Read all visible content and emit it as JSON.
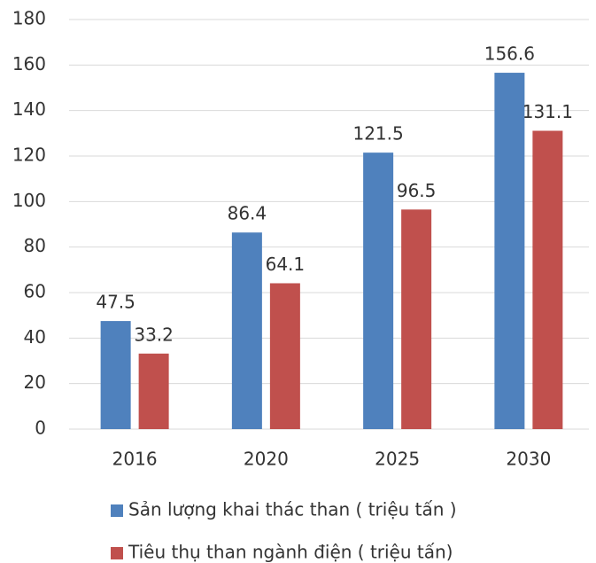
{
  "chart_data": {
    "type": "bar",
    "categories": [
      "2016",
      "2020",
      "2025",
      "2030"
    ],
    "series": [
      {
        "name": "Sản lượng khai thác than ( triệu tấn )",
        "color": "#4f81bd",
        "values": [
          47.5,
          86.4,
          121.5,
          156.6
        ]
      },
      {
        "name": "Tiêu thụ than ngành điện ( triệu tấn)",
        "color": "#c0504d",
        "values": [
          33.2,
          64.1,
          96.5,
          131.1
        ]
      }
    ],
    "ylim": [
      0,
      180
    ],
    "yticks": [
      0,
      20,
      40,
      60,
      80,
      100,
      120,
      140,
      160,
      180
    ],
    "grid": true,
    "legend": "bottom"
  }
}
